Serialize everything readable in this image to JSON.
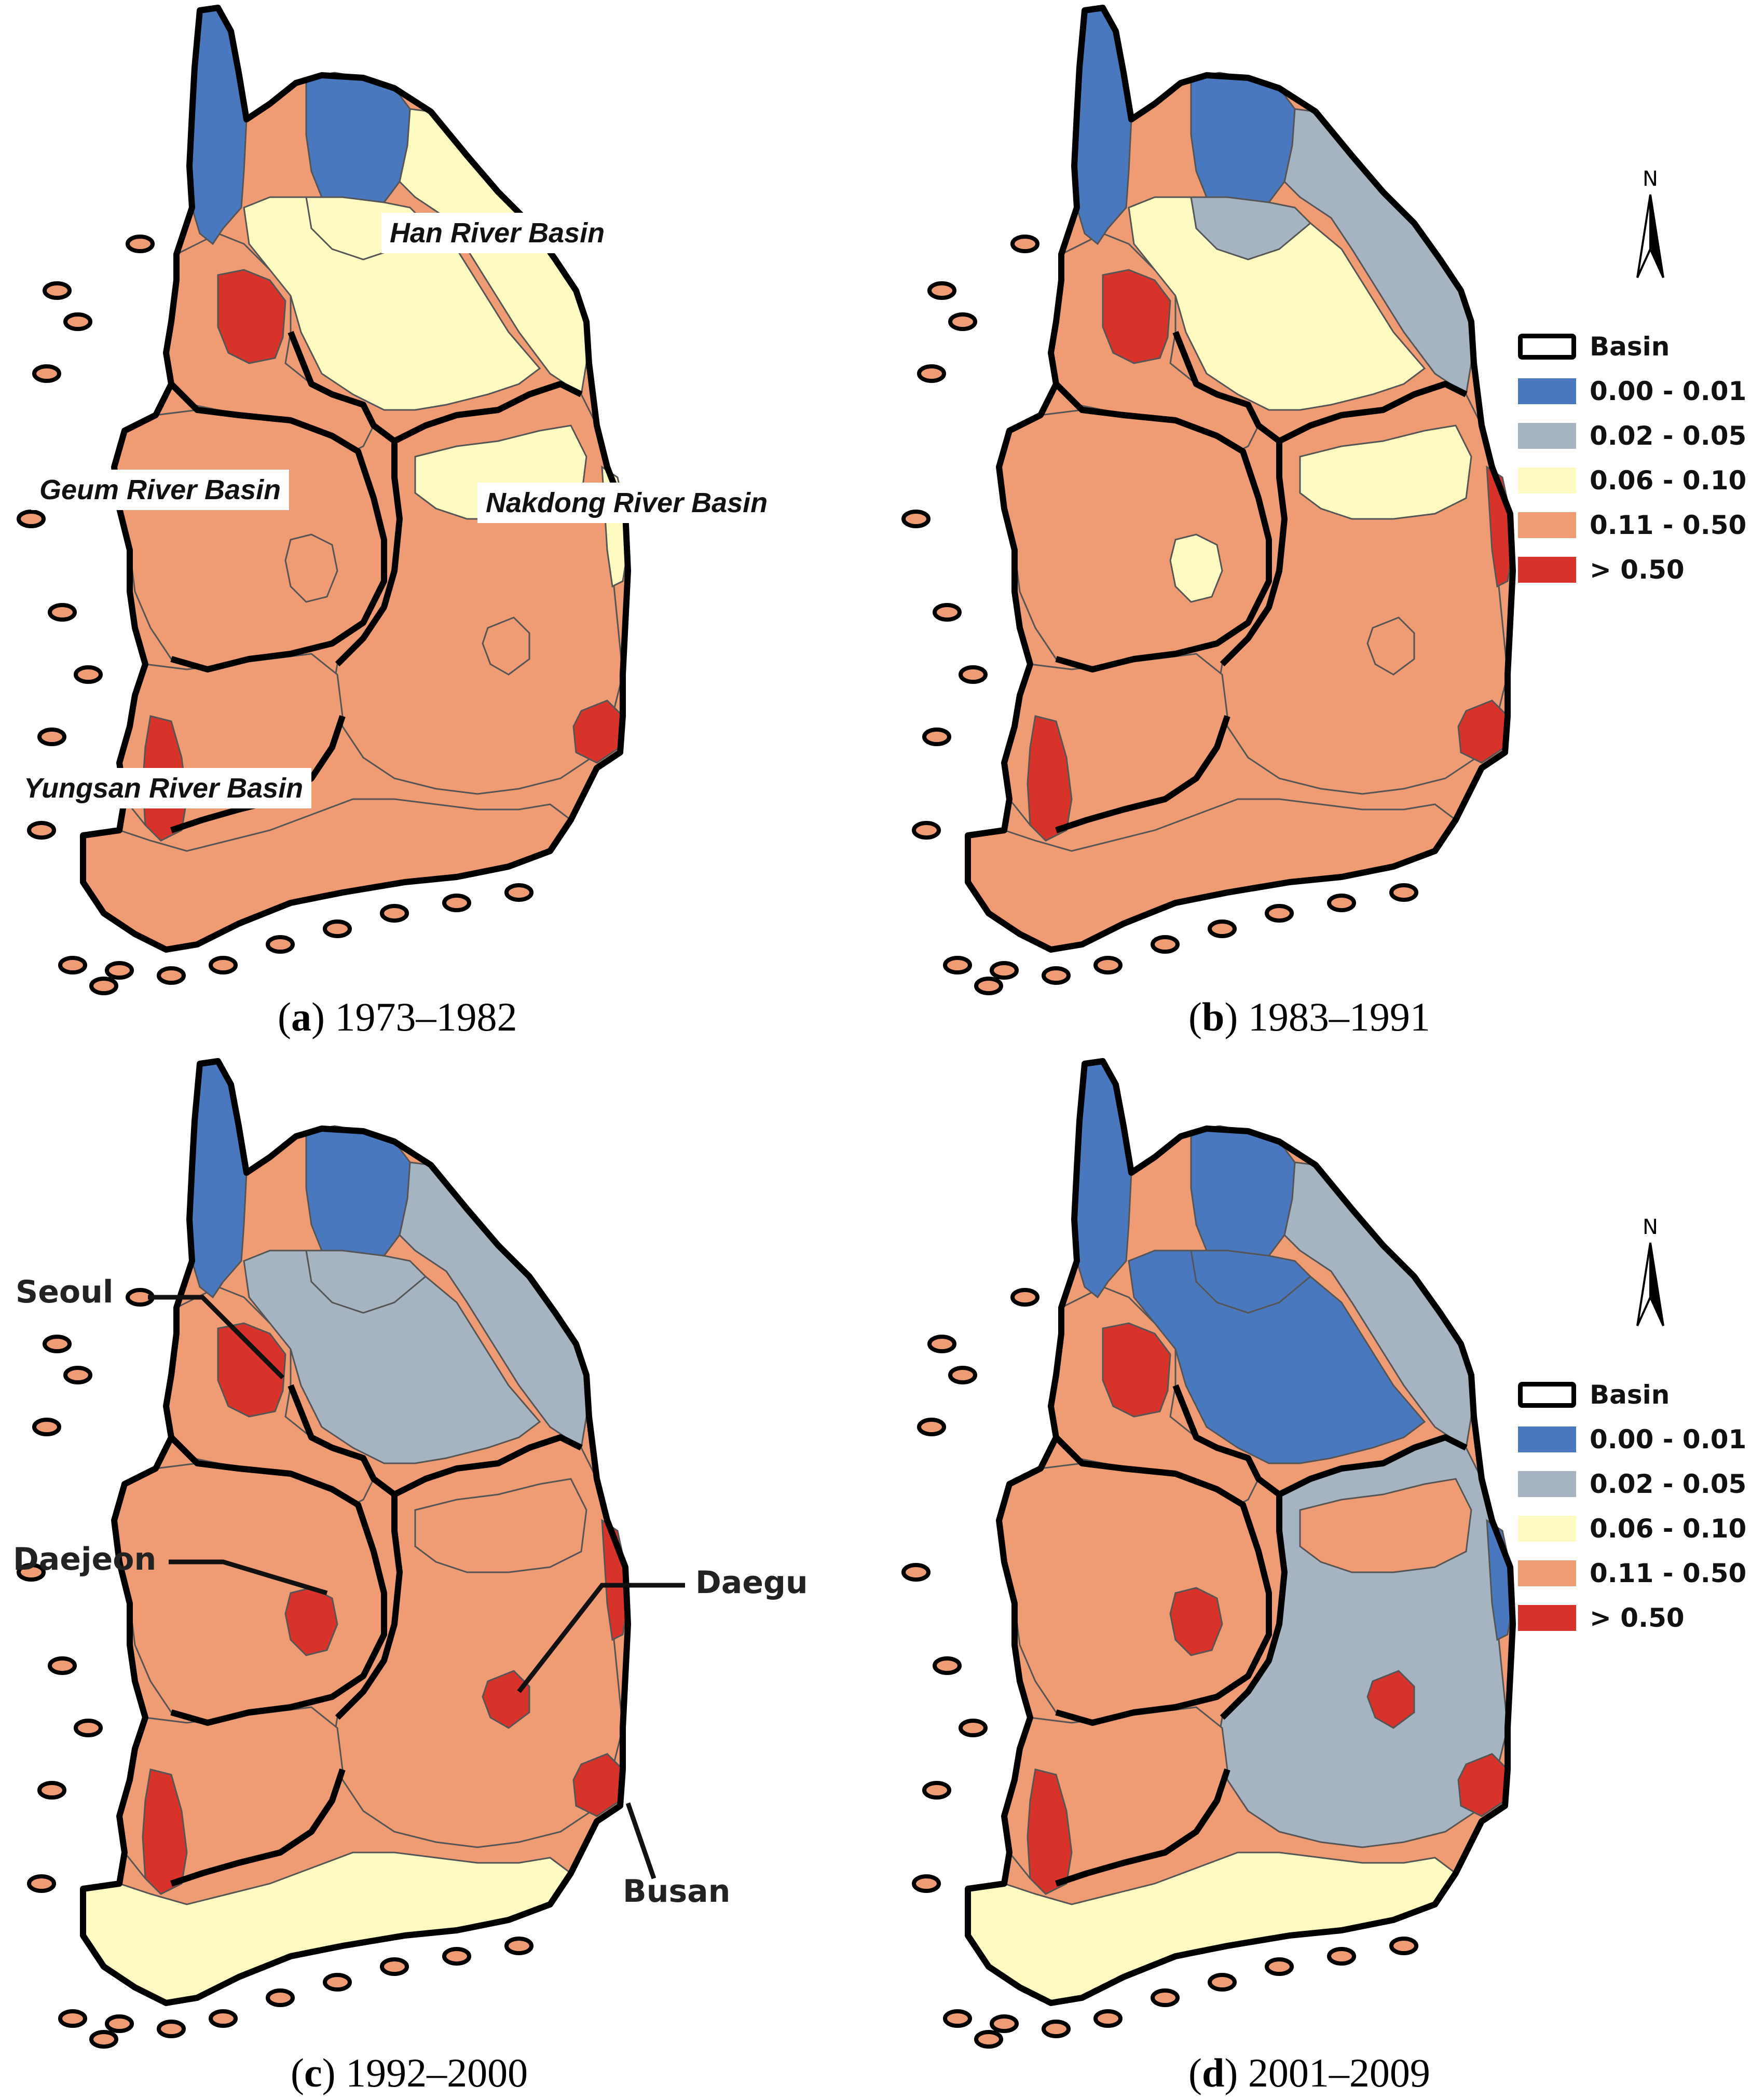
{
  "panels": [
    {
      "id": "a",
      "letter": "a",
      "period": "1973–1982"
    },
    {
      "id": "b",
      "letter": "b",
      "period": "1983–1991"
    },
    {
      "id": "c",
      "letter": "c",
      "period": "1992–2000"
    },
    {
      "id": "d",
      "letter": "d",
      "period": "2001–2009"
    }
  ],
  "basin_labels": {
    "han": "Han River Basin",
    "geum": "Geum River Basin",
    "nakdong": "Nakdong River Basin",
    "yungsan": "Yungsan River Basin"
  },
  "city_labels": {
    "seoul": "Seoul",
    "daejeon": "Daejeon",
    "daegu": "Daegu",
    "busan": "Busan"
  },
  "legend": {
    "basin_label": "Basin",
    "classes": [
      {
        "label": "0.00 - 0.01",
        "color": "#4a78bf"
      },
      {
        "label": "0.02 - 0.05",
        "color": "#a6b4c2"
      },
      {
        "label": "0.06 - 0.10",
        "color": "#fdfbc2"
      },
      {
        "label": "0.11 - 0.50",
        "color": "#ef9b73"
      },
      {
        "label": "> 0.50",
        "color": "#d7332b"
      }
    ]
  },
  "north_label": "N",
  "colors": {
    "outline": "#000000",
    "district_line": "#555555"
  },
  "region_classes": {
    "a": {
      "nw1": 0,
      "nw2": 0,
      "ne": 2,
      "seoul": 4,
      "westcentral": 3,
      "hancentral": 2,
      "haneast": 2,
      "geum": 3,
      "daejeon": 3,
      "nakdong": 3,
      "nakN": 2,
      "eastcoast": 2,
      "daegu": 3,
      "busan": 4,
      "yungsan": 3,
      "yungW": 4,
      "sw": 3
    },
    "b": {
      "nw1": 0,
      "nw2": 0,
      "ne": 1,
      "seoul": 4,
      "westcentral": 3,
      "hancentral": 2,
      "haneast": 1,
      "geum": 3,
      "daejeon": 2,
      "nakdong": 3,
      "nakN": 2,
      "eastcoast": 4,
      "daegu": 3,
      "busan": 4,
      "yungsan": 3,
      "yungW": 4,
      "sw": 3
    },
    "c": {
      "nw1": 0,
      "nw2": 0,
      "ne": 1,
      "seoul": 4,
      "westcentral": 3,
      "hancentral": 1,
      "haneast": 1,
      "geum": 3,
      "daejeon": 4,
      "nakdong": 3,
      "nakN": 3,
      "eastcoast": 4,
      "daegu": 4,
      "busan": 4,
      "yungsan": 3,
      "yungW": 4,
      "sw": 2
    },
    "d": {
      "nw1": 0,
      "nw2": 0,
      "ne": 1,
      "seoul": 4,
      "westcentral": 3,
      "hancentral": 0,
      "haneast": 0,
      "geum": 3,
      "daejeon": 4,
      "nakdong": 1,
      "nakN": 3,
      "eastcoast": 0,
      "daegu": 4,
      "busan": 4,
      "yungsan": 3,
      "yungW": 4,
      "sw": 2
    }
  }
}
